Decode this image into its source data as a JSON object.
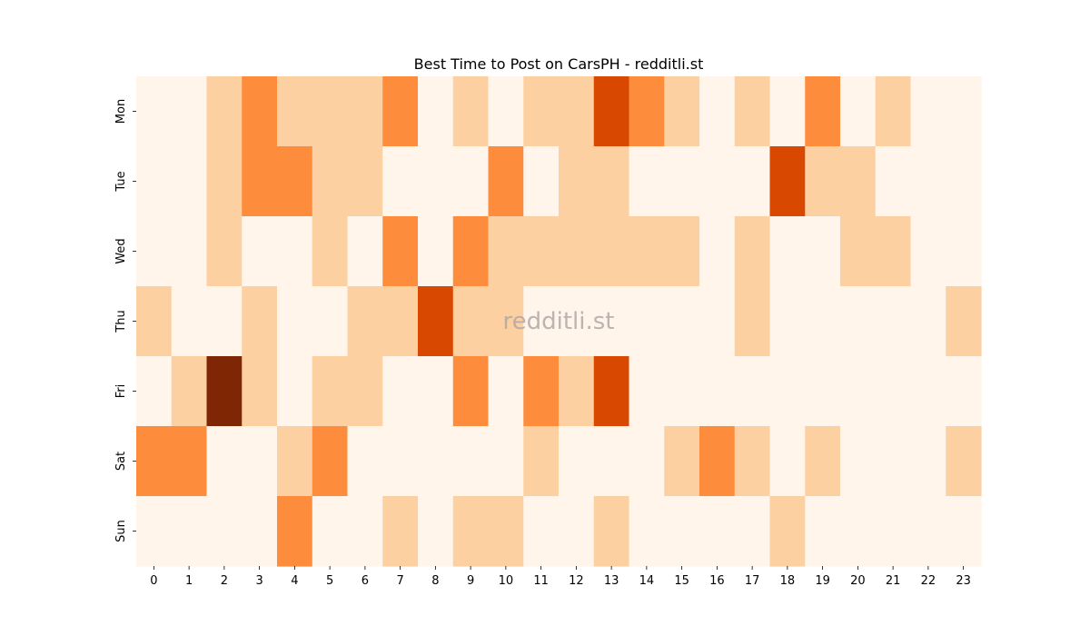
{
  "chart_data": {
    "type": "heatmap",
    "title": "Best Time to Post on CarsPH - redditli.st",
    "xlabel": "",
    "ylabel": "",
    "x_labels": [
      "0",
      "1",
      "2",
      "3",
      "4",
      "5",
      "6",
      "7",
      "8",
      "9",
      "10",
      "11",
      "12",
      "13",
      "14",
      "15",
      "16",
      "17",
      "18",
      "19",
      "20",
      "21",
      "22",
      "23"
    ],
    "y_labels": [
      "Mon",
      "Tue",
      "Wed",
      "Thu",
      "Fri",
      "Sat",
      "Sun"
    ],
    "values": [
      [
        0,
        0,
        1,
        2,
        1,
        1,
        1,
        2,
        0,
        1,
        0,
        1,
        1,
        3,
        2,
        1,
        0,
        1,
        0,
        2,
        0,
        1,
        0,
        0
      ],
      [
        0,
        0,
        1,
        2,
        2,
        1,
        1,
        0,
        0,
        0,
        2,
        0,
        1,
        1,
        0,
        0,
        0,
        0,
        3,
        1,
        1,
        0,
        0,
        0
      ],
      [
        0,
        0,
        1,
        0,
        0,
        1,
        0,
        2,
        0,
        2,
        1,
        1,
        1,
        1,
        1,
        1,
        0,
        1,
        0,
        0,
        1,
        1,
        0,
        0
      ],
      [
        1,
        0,
        0,
        1,
        0,
        0,
        1,
        1,
        3,
        1,
        1,
        0,
        0,
        0,
        0,
        0,
        0,
        1,
        0,
        0,
        0,
        0,
        0,
        1
      ],
      [
        0,
        1,
        4,
        1,
        0,
        1,
        1,
        0,
        0,
        2,
        0,
        2,
        1,
        3,
        0,
        0,
        0,
        0,
        0,
        0,
        0,
        0,
        0,
        0
      ],
      [
        2,
        2,
        0,
        0,
        1,
        2,
        0,
        0,
        0,
        0,
        0,
        1,
        0,
        0,
        0,
        1,
        2,
        1,
        0,
        1,
        0,
        0,
        0,
        1
      ],
      [
        0,
        0,
        0,
        0,
        2,
        0,
        0,
        1,
        0,
        1,
        1,
        0,
        0,
        1,
        0,
        0,
        0,
        0,
        1,
        0,
        0,
        0,
        0,
        0
      ]
    ],
    "colorscale": [
      "#fff5eb",
      "#fdd0a2",
      "#fd8d3c",
      "#d94801",
      "#7f2704"
    ],
    "colorbar": false,
    "watermark": "redditli.st"
  }
}
